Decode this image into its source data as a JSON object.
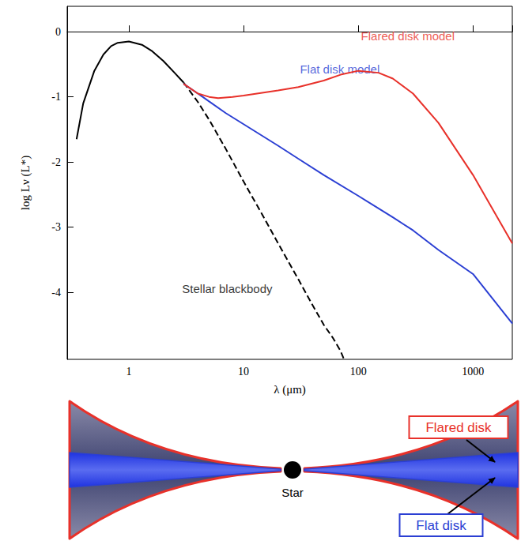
{
  "chart_data": {
    "type": "line",
    "log": "x",
    "grid": false,
    "x_label": "λ (μm)",
    "y_label": "log Lν (L*)",
    "xlim": [
      0.29,
      2200
    ],
    "ylim": [
      -5.03,
      0.39
    ],
    "xticks": [
      1,
      10,
      100,
      1000
    ],
    "yticks": [
      -4,
      -3,
      -2,
      -1,
      0
    ],
    "series": [
      {
        "name": "Stellar blackbody",
        "color": "#000000",
        "segments": [
          {
            "line_style": "solid",
            "x": [
              0.35,
              0.4,
              0.5,
              0.6,
              0.7,
              0.8,
              1.0,
              1.3,
              1.6,
              2.0,
              2.5,
              3.0
            ],
            "values": [
              -1.65,
              -1.1,
              -0.6,
              -0.35,
              -0.22,
              -0.17,
              -0.15,
              -0.2,
              -0.3,
              -0.45,
              -0.63,
              -0.78
            ]
          },
          {
            "line_style": "dashed",
            "x": [
              3.0,
              4,
              5,
              7,
              10,
              15,
              20,
              30,
              40,
              50,
              60,
              70,
              75
            ],
            "values": [
              -0.78,
              -1.08,
              -1.35,
              -1.8,
              -2.3,
              -2.85,
              -3.25,
              -3.8,
              -4.2,
              -4.5,
              -4.7,
              -4.9,
              -5.03
            ]
          }
        ]
      },
      {
        "name": "Flat disk model",
        "color": "#2b3fd3",
        "line_style": "solid",
        "x": [
          3,
          4,
          5,
          7,
          10,
          20,
          30,
          50,
          100,
          200,
          300,
          500,
          1000,
          2200
        ],
        "values": [
          -0.8,
          -0.95,
          -1.07,
          -1.25,
          -1.42,
          -1.75,
          -1.95,
          -2.2,
          -2.52,
          -2.85,
          -3.05,
          -3.35,
          -3.72,
          -4.48
        ]
      },
      {
        "name": "Flared disk model",
        "color": "#e8312a",
        "line_style": "solid",
        "x": [
          3,
          4,
          5,
          6,
          8,
          10,
          20,
          30,
          50,
          70,
          100,
          150,
          200,
          300,
          500,
          1000,
          2200
        ],
        "values": [
          -0.8,
          -0.95,
          -1.0,
          -1.02,
          -1.0,
          -0.98,
          -0.9,
          -0.85,
          -0.75,
          -0.66,
          -0.6,
          -0.63,
          -0.72,
          -0.95,
          -1.4,
          -2.2,
          -3.25
        ]
      }
    ],
    "annotations": [
      {
        "text": "Flared disk model",
        "x": 270,
        "y": -0.06,
        "color": "#e8312a"
      },
      {
        "text": "Flat disk model",
        "x": 69,
        "y": -0.58,
        "color": "#2b3fd3"
      },
      {
        "text": "Stellar blackbody",
        "x": 7.2,
        "y": -3.94,
        "color": "#000000"
      }
    ]
  },
  "diagram": {
    "labels": {
      "flared": "Flared disk",
      "flat": "Flat disk",
      "star": "Star"
    }
  }
}
